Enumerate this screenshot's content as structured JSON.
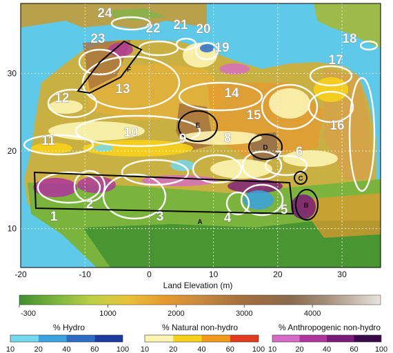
{
  "map": {
    "x_ticks": [
      "-20",
      "-10",
      "0",
      "10",
      "20",
      "30"
    ],
    "y_ticks": [
      "30",
      "20",
      "10"
    ],
    "x_tick_lon": [
      -20,
      -10,
      0,
      10,
      20,
      30
    ],
    "y_tick_lat": [
      30,
      20,
      10
    ],
    "extent": {
      "lon": [
        -20,
        36
      ],
      "lat": [
        5,
        39
      ]
    },
    "numbered_regions": [
      "1",
      "2",
      "3",
      "4",
      "5",
      "6",
      "7",
      "8",
      "9",
      "10",
      "11",
      "12",
      "13",
      "14",
      "15",
      "16",
      "17",
      "18",
      "19",
      "20",
      "21",
      "22",
      "23",
      "24"
    ],
    "lettered_regions": [
      "A",
      "B",
      "C",
      "D",
      "E",
      "F"
    ]
  },
  "colorbars": {
    "elevation": {
      "title": "Land Elevation (m)",
      "ticks": [
        "-300",
        "1000",
        "2000",
        "3000",
        "4000"
      ],
      "colors": [
        "#3f8f2f",
        "#7bb43c",
        "#bcd046",
        "#e8c23a",
        "#e79a2f",
        "#c98a3e",
        "#a46f3d",
        "#8a6a4e",
        "#a58f7a",
        "#c8bcb0",
        "#e8e4e2"
      ]
    },
    "hydro": {
      "title": "% Hydro",
      "ticks": [
        "10",
        "20",
        "40",
        "60",
        "100"
      ],
      "colors": [
        "#74d8ee",
        "#3aa3e0",
        "#2d6cc4",
        "#1d3a9e"
      ]
    },
    "natural": {
      "title": "% Natural non-hydro",
      "ticks": [
        "10",
        "20",
        "40",
        "60",
        "100"
      ],
      "colors": [
        "#fdf5b4",
        "#f8d21a",
        "#f39a1a",
        "#e13a1e"
      ]
    },
    "anthro": {
      "title": "% Anthropogenic non-hydro",
      "ticks": [
        "10",
        "20",
        "40",
        "60",
        "100"
      ],
      "colors": [
        "#d86bc8",
        "#b0349e",
        "#7a1a78",
        "#3a0a48"
      ]
    }
  },
  "colors": {
    "sea": "#5fc9e9",
    "land": "#c9b043",
    "frame": "#000000",
    "outline": "#ffffff"
  }
}
